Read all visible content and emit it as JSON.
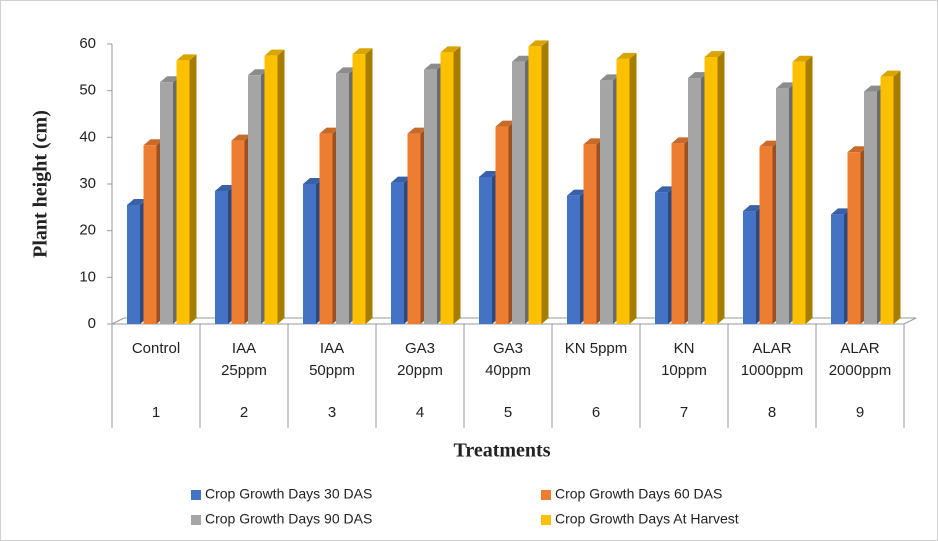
{
  "chart_data": {
    "type": "bar3d",
    "x_label": "Treatments",
    "y_label": "Plant height (cm)",
    "categories": [
      "Control",
      "IAA\n25ppm",
      "IAA\n50ppm",
      "GA3\n20ppm",
      "GA3\n40ppm",
      "KN 5ppm",
      "KN\n10ppm",
      "ALAR\n1000ppm",
      "ALAR\n2000ppm"
    ],
    "category_numbers": [
      "1",
      "2",
      "3",
      "4",
      "5",
      "6",
      "7",
      "8",
      "9"
    ],
    "series": [
      {
        "name": "Crop Growth Days 30 DAS",
        "color": "#4472c4",
        "values": [
          25.5,
          28.5,
          30,
          30.3,
          31.5,
          27.5,
          28.2,
          24.2,
          23.5
        ]
      },
      {
        "name": "Crop Growth Days 60 DAS",
        "color": "#ed7d31",
        "values": [
          38.3,
          39.3,
          40.8,
          40.8,
          42.3,
          38.5,
          38.7,
          38,
          36.8
        ]
      },
      {
        "name": "Crop Growth Days 90 DAS",
        "color": "#a5a5a5",
        "values": [
          51.8,
          53.3,
          53.7,
          54.5,
          56.2,
          52.2,
          52.7,
          50.5,
          49.8
        ]
      },
      {
        "name": "Crop Growth Days At Harvest",
        "color": "#ffc000",
        "values": [
          56.5,
          57.5,
          57.8,
          58.2,
          59.5,
          56.8,
          57.2,
          56.2,
          53
        ]
      }
    ],
    "ylim": [
      0,
      60
    ],
    "yticks": [
      0,
      10,
      20,
      30,
      40,
      50,
      60
    ],
    "grid": false
  }
}
